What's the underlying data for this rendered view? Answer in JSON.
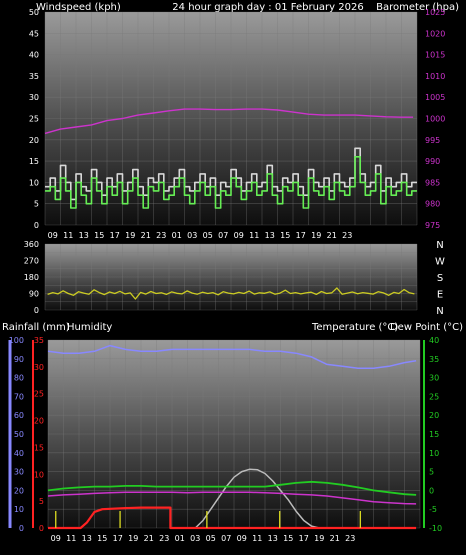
{
  "header": {
    "title": "24 hour graph day : 01 February 2026",
    "left_label": "Windspeed (kph)",
    "right_label": "Barometer (hpa)"
  },
  "lower_header": {
    "rain_label": "Rainfall (mm)",
    "humidity_label": "Humidity",
    "temp_label": "Temperature (°C)",
    "dew_label": "Dew Point (°C)"
  },
  "colors": {
    "wind": "#d8d8d8",
    "gust": "#66ee55",
    "barometer": "#cc33cc",
    "direction": "#cccc22",
    "humidity": "#8888ff",
    "temperature": "#22cc22",
    "dewpoint": "#cc33cc",
    "solar": "#bbbbbb",
    "rainfall": "#ff2222",
    "rain_marks": "#dddd22"
  },
  "chart_data": [
    {
      "type": "line",
      "name": "wind-barometer",
      "x_ticks": [
        "09",
        "11",
        "13",
        "15",
        "17",
        "19",
        "21",
        "23",
        "01",
        "03",
        "05",
        "07",
        "09",
        "11",
        "13",
        "15",
        "17",
        "19",
        "21",
        "23"
      ],
      "y_left": {
        "label": "Windspeed (kph)",
        "ticks": [
          0,
          5,
          10,
          15,
          20,
          25,
          30,
          35,
          40,
          45,
          50
        ],
        "range": [
          0,
          50
        ]
      },
      "y_right": {
        "label": "Barometer (hpa)",
        "ticks": [
          975,
          980,
          985,
          990,
          995,
          1000,
          1005,
          1010,
          1015,
          1020,
          1025
        ],
        "range": [
          975,
          1025
        ]
      },
      "series": [
        {
          "key": "windspeed",
          "axis": "left",
          "values": [
            9,
            11,
            8,
            14,
            10,
            6,
            12,
            9,
            8,
            13,
            10,
            7,
            11,
            9,
            12,
            8,
            10,
            13,
            9,
            7,
            11,
            10,
            12,
            8,
            9,
            11,
            13,
            9,
            8,
            10,
            12,
            9,
            11,
            7,
            10,
            9,
            13,
            11,
            8,
            10,
            12,
            9,
            10,
            14,
            9,
            8,
            11,
            10,
            12,
            9,
            7,
            13,
            10,
            9,
            11,
            8,
            12,
            10,
            9,
            11,
            18,
            12,
            9,
            10,
            14,
            8,
            11,
            9,
            10,
            12,
            9,
            10
          ]
        },
        {
          "key": "gust",
          "axis": "left",
          "values": [
            8,
            9,
            6,
            11,
            8,
            4,
            10,
            7,
            5,
            11,
            8,
            5,
            9,
            7,
            10,
            5,
            8,
            11,
            7,
            4,
            9,
            8,
            10,
            6,
            7,
            9,
            11,
            7,
            5,
            8,
            10,
            7,
            9,
            4,
            8,
            7,
            11,
            9,
            6,
            8,
            10,
            7,
            8,
            12,
            7,
            5,
            9,
            8,
            10,
            7,
            4,
            11,
            8,
            7,
            9,
            6,
            10,
            8,
            7,
            9,
            16,
            10,
            7,
            8,
            12,
            5,
            9,
            7,
            8,
            10,
            7,
            8
          ]
        },
        {
          "key": "barometer",
          "axis": "right",
          "x": [
            0,
            2,
            4,
            6,
            8,
            10,
            12,
            14,
            16,
            18,
            20,
            22,
            24,
            26,
            28,
            30,
            32,
            34,
            36,
            38,
            40,
            42,
            44,
            46,
            47.5
          ],
          "values": [
            996.5,
            997.5,
            998,
            998.5,
            999.5,
            1000,
            1000.8,
            1001.3,
            1001.8,
            1002.2,
            1002.2,
            1002.1,
            1002.1,
            1002.2,
            1002.2,
            1002,
            1001.5,
            1001,
            1000.8,
            1000.8,
            1000.8,
            1000.6,
            1000.4,
            1000.3,
            1000.3
          ]
        }
      ]
    },
    {
      "type": "line",
      "name": "wind-direction",
      "y_left": {
        "ticks": [
          0,
          90,
          180,
          270,
          360
        ],
        "range": [
          0,
          360
        ]
      },
      "y_right_labels": [
        "N",
        "W",
        "S",
        "E",
        "N"
      ],
      "series": [
        {
          "key": "direction",
          "values": [
            85,
            95,
            88,
            105,
            90,
            80,
            100,
            92,
            86,
            110,
            95,
            84,
            98,
            90,
            102,
            88,
            93,
            60,
            96,
            87,
            101,
            90,
            94,
            85,
            99,
            91,
            88,
            104,
            92,
            86,
            97,
            90,
            95,
            83,
            100,
            92,
            88,
            96,
            90,
            103,
            87,
            94,
            91,
            99,
            86,
            92,
            108,
            90,
            95,
            88,
            93,
            97,
            85,
            101,
            90,
            94,
            120,
            86,
            92,
            98,
            89,
            95,
            91,
            87,
            100,
            93,
            80,
            96,
            90,
            112,
            94,
            88
          ]
        }
      ]
    },
    {
      "type": "line",
      "name": "rain-humidity-temperature",
      "x_ticks": [
        "09",
        "11",
        "13",
        "15",
        "17",
        "19",
        "21",
        "23",
        "01",
        "03",
        "05",
        "07",
        "09",
        "11",
        "13",
        "15",
        "17",
        "19",
        "21",
        "23"
      ],
      "y_humidity": {
        "label": "Humidity",
        "ticks": [
          0,
          10,
          20,
          30,
          40,
          50,
          60,
          70,
          80,
          90,
          100
        ],
        "range": [
          0,
          100
        ]
      },
      "y_rain": {
        "label": "Rainfall (mm)",
        "ticks": [
          0,
          5,
          10,
          15,
          20,
          25,
          30,
          35
        ],
        "range": [
          0,
          35
        ]
      },
      "y_temp": {
        "label": "Temperature (°C)",
        "ticks": [
          -10,
          -5,
          0,
          5,
          10,
          15,
          20,
          25,
          30,
          35,
          40
        ],
        "range": [
          -10,
          40
        ]
      },
      "series": [
        {
          "key": "humidity",
          "axis": "humidity",
          "x": [
            0,
            2,
            4,
            6,
            8,
            10,
            12,
            14,
            16,
            18,
            20,
            22,
            24,
            26,
            28,
            30,
            32,
            34,
            36,
            38,
            40,
            42,
            44,
            46,
            47.5
          ],
          "values": [
            94,
            93,
            93,
            94,
            97,
            95,
            94,
            94,
            95,
            95,
            95,
            95,
            95,
            95,
            94,
            94,
            93,
            91,
            87,
            86,
            85,
            85,
            86,
            88,
            89
          ]
        },
        {
          "key": "temperature",
          "axis": "temp",
          "x": [
            0,
            2,
            4,
            6,
            8,
            10,
            12,
            14,
            16,
            18,
            20,
            22,
            24,
            26,
            28,
            30,
            32,
            34,
            36,
            38,
            40,
            42,
            44,
            46,
            47.5
          ],
          "values": [
            0,
            0.5,
            0.8,
            1,
            1,
            1.2,
            1.2,
            1,
            1,
            1,
            1,
            1,
            1,
            1,
            1,
            1.5,
            2,
            2.3,
            2,
            1.5,
            0.8,
            0,
            -0.5,
            -1,
            -1.2
          ]
        },
        {
          "key": "dewpoint",
          "axis": "temp",
          "x": [
            0,
            2,
            4,
            6,
            8,
            10,
            12,
            14,
            16,
            18,
            20,
            22,
            24,
            26,
            28,
            30,
            32,
            34,
            36,
            38,
            40,
            42,
            44,
            46,
            47.5
          ],
          "values": [
            -1.5,
            -1.2,
            -1,
            -0.8,
            -0.6,
            -0.5,
            -0.5,
            -0.5,
            -0.5,
            -0.6,
            -0.5,
            -0.5,
            -0.5,
            -0.5,
            -0.6,
            -0.8,
            -1,
            -1.2,
            -1.5,
            -2,
            -2.5,
            -3,
            -3.3,
            -3.5,
            -3.6
          ]
        },
        {
          "key": "solar",
          "axis": "temp",
          "x": [
            19,
            20,
            21,
            22,
            23,
            24,
            25,
            26,
            27,
            28,
            29,
            30,
            31,
            32,
            33,
            34,
            35
          ],
          "values": [
            -10,
            -8,
            -5,
            -2,
            1,
            3.5,
            5,
            5.6,
            5.5,
            4.5,
            2.5,
            0,
            -2.5,
            -5.5,
            -8,
            -9.5,
            -10
          ]
        },
        {
          "key": "rainfall",
          "axis": "rain",
          "x": [
            0,
            4.2,
            5,
            6,
            7,
            10,
            12,
            14,
            15.8,
            15.8,
            47.5
          ],
          "values": [
            0,
            0,
            1,
            3,
            3.5,
            3.7,
            3.8,
            3.8,
            3.8,
            0,
            0
          ]
        }
      ],
      "rain_events_x": [
        1,
        9.3,
        20.5,
        29.9,
        40.3
      ]
    }
  ]
}
